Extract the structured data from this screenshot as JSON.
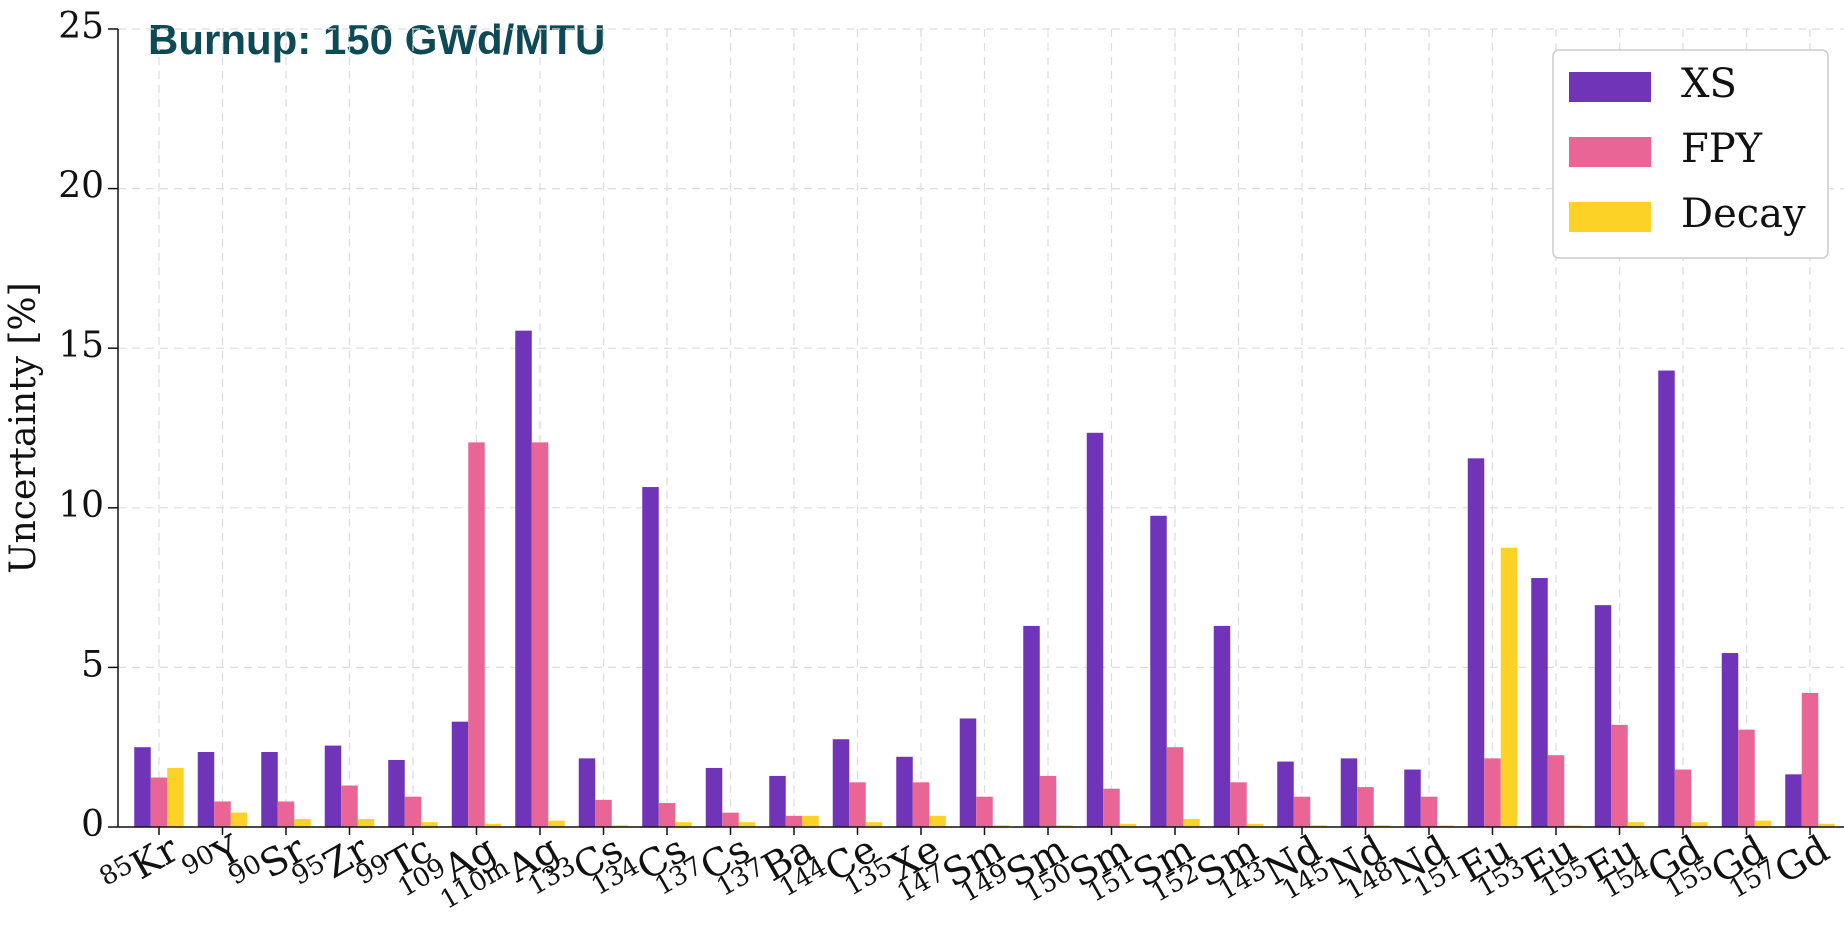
{
  "chart_data": {
    "type": "bar",
    "title": "Burnup: 150 GWd/MTU",
    "y_label": "Uncertainty [%]",
    "categories": [
      "85Kr",
      "90Y",
      "90Sr",
      "95Zr",
      "99Tc",
      "109Ag",
      "110mAg",
      "133Cs",
      "134Cs",
      "137Cs",
      "137Ba",
      "144Ce",
      "135Xe",
      "147Sm",
      "149Sm",
      "150Sm",
      "151Sm",
      "152Sm",
      "143Nd",
      "145Nd",
      "148Nd",
      "151Eu",
      "153Eu",
      "155Eu",
      "154Gd",
      "155Gd",
      "157Gd"
    ],
    "series": [
      {
        "name": "XS",
        "color": "#7034b9",
        "values": [
          2.5,
          2.35,
          2.35,
          2.55,
          2.1,
          3.3,
          15.55,
          2.15,
          10.65,
          1.85,
          1.6,
          2.75,
          2.2,
          3.4,
          6.3,
          12.35,
          9.75,
          6.3,
          2.05,
          2.15,
          1.8,
          11.55,
          7.8,
          6.95,
          14.3,
          5.45,
          1.65
        ]
      },
      {
        "name": "FPY",
        "color": "#e86595",
        "values": [
          1.55,
          0.8,
          0.8,
          1.3,
          0.95,
          12.05,
          12.05,
          0.85,
          0.75,
          0.45,
          0.35,
          1.4,
          1.4,
          0.95,
          1.6,
          1.2,
          2.5,
          1.4,
          0.95,
          1.25,
          0.95,
          2.15,
          2.25,
          3.2,
          1.8,
          3.05,
          4.2
        ]
      },
      {
        "name": "Decay",
        "color": "#fdd227",
        "values": [
          1.85,
          0.45,
          0.25,
          0.25,
          0.15,
          0.1,
          0.2,
          0.05,
          0.15,
          0.15,
          0.35,
          0.15,
          0.35,
          0.05,
          0.05,
          0.1,
          0.25,
          0.1,
          0.05,
          0.05,
          0.05,
          8.75,
          0.05,
          0.15,
          0.15,
          0.2,
          0.1
        ]
      }
    ],
    "ylim": [
      0,
      25
    ],
    "yticks": [
      0,
      5,
      10,
      15,
      20,
      25
    ],
    "grid": true,
    "legend": "upper right"
  }
}
